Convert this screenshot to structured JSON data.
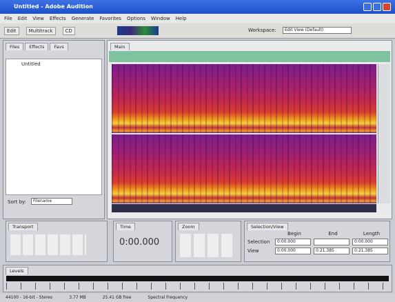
{
  "window": {
    "title": "Untitled - Adobe Audition"
  },
  "menu": [
    "File",
    "Edit",
    "View",
    "Effects",
    "Generate",
    "Favorites",
    "Options",
    "Window",
    "Help"
  ],
  "toolbar": {
    "modes": [
      "Edit",
      "Multitrack",
      "CD"
    ],
    "workspace": "Workspace:",
    "workspace_value": "Edit View (Default)"
  },
  "files_panel": {
    "tabs": [
      "Files",
      "Effects",
      "Favs"
    ],
    "items": [
      "Untitled"
    ],
    "sort_label": "Sort by:",
    "sort_value": "Filename"
  },
  "main_panel": {
    "tab": "Main"
  },
  "transport": {
    "tab": "Transport"
  },
  "time": {
    "tab": "Time",
    "display": "0:00.000"
  },
  "zoom": {
    "tab": "Zoom"
  },
  "selection": {
    "tab": "Selection/View",
    "headers": [
      "Begin",
      "End",
      "Length"
    ],
    "rows": [
      {
        "label": "Selection",
        "values": [
          "0:00.000",
          "",
          "0:00.000"
        ]
      },
      {
        "label": "View",
        "values": [
          "0:00.000",
          "0:21.385",
          "0:21.385"
        ]
      }
    ]
  },
  "levels": {
    "tab": "Levels"
  },
  "status": [
    "44100 - 16-bit - Stereo",
    "3.77 MB",
    "25.41 GB free",
    "Spectral Frequency"
  ]
}
